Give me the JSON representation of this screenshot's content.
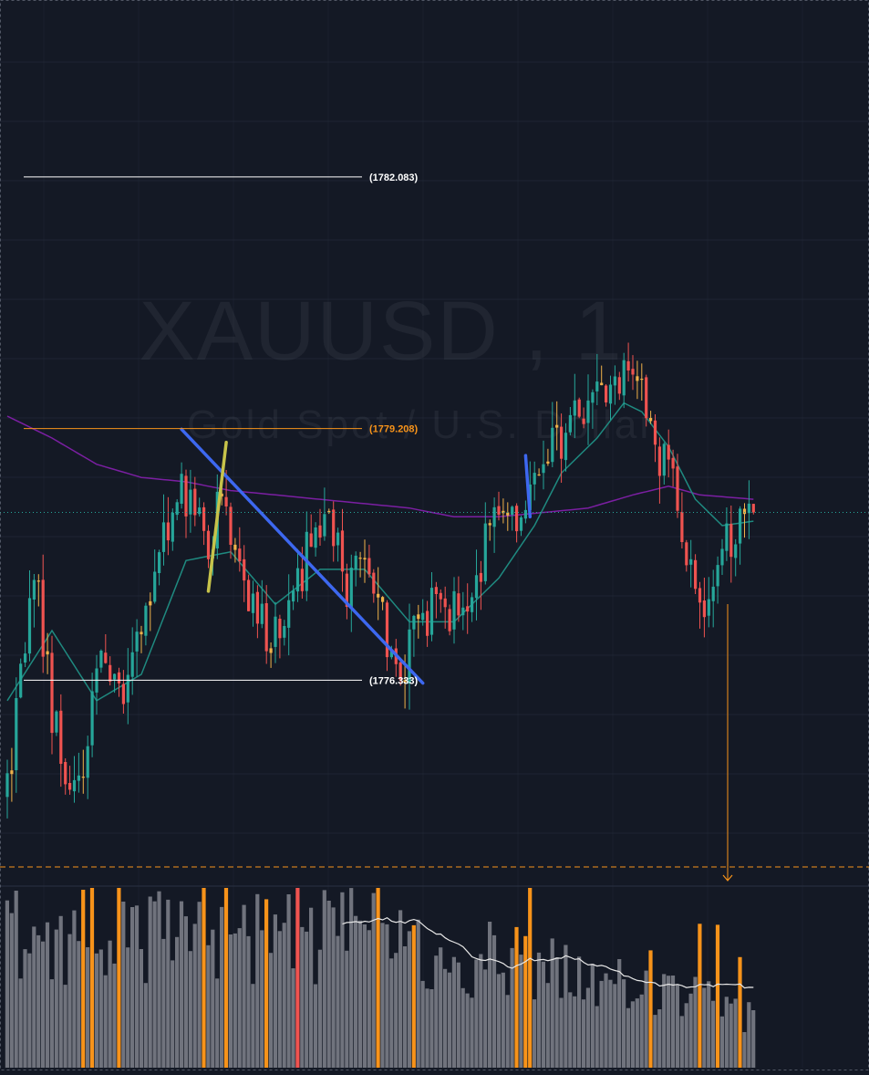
{
  "watermark": {
    "symbol": "XAUUSD , 1",
    "description": "Gold Spot  /  U.S. Dollar"
  },
  "colors": {
    "background": "#141925",
    "grid": "#2a3142",
    "candle_up": "#26a69a",
    "candle_down": "#ef5350",
    "candle_neutral": "#f0b24a",
    "ma_fast": "#1f8a80",
    "ma_slow": "#7b1fa2",
    "trend_blue": "#3d68f0",
    "trend_yellow": "#c7c34a",
    "level_white": "#ffffff",
    "level_orange": "#f7931a",
    "volume_gray": "#70737d",
    "volume_orange": "#f7931a",
    "volume_red": "#ef5350",
    "volume_ma": "#e6e6e6",
    "watermark": "#c9ccd4"
  },
  "chart_data": {
    "type": "candlestick",
    "symbol": "XAUUSD",
    "timeframe": "1",
    "ylim": [
      1774.2,
      1784.0
    ],
    "price_levels": [
      {
        "price": 1782.083,
        "label": "(1782.083)",
        "color": "#ffffff"
      },
      {
        "price": 1779.208,
        "label": "(1779.208)",
        "color": "#f7931a"
      },
      {
        "price": 1776.333,
        "label": "(1776.333)",
        "color": "#ffffff"
      }
    ],
    "current_price": 1778.25,
    "waypoints": [
      [
        0,
        1775.0
      ],
      [
        6,
        1777.6
      ],
      [
        10,
        1776.0
      ],
      [
        14,
        1775.0
      ],
      [
        17,
        1775.4
      ],
      [
        21,
        1776.7
      ],
      [
        26,
        1776.2
      ],
      [
        30,
        1777.0
      ],
      [
        34,
        1777.7
      ],
      [
        38,
        1778.5
      ],
      [
        42,
        1778.2
      ],
      [
        45,
        1777.7
      ],
      [
        48,
        1778.5
      ],
      [
        51,
        1777.8
      ],
      [
        55,
        1777.2
      ],
      [
        58,
        1776.8
      ],
      [
        61,
        1777.0
      ],
      [
        65,
        1777.4
      ],
      [
        68,
        1778.0
      ],
      [
        72,
        1778.1
      ],
      [
        76,
        1777.4
      ],
      [
        80,
        1777.8
      ],
      [
        83,
        1777.2
      ],
      [
        86,
        1776.6
      ],
      [
        89,
        1776.5
      ],
      [
        92,
        1777.0
      ],
      [
        96,
        1777.2
      ],
      [
        100,
        1777.1
      ],
      [
        104,
        1777.4
      ],
      [
        108,
        1778.0
      ],
      [
        112,
        1778.3
      ],
      [
        116,
        1778.2
      ],
      [
        119,
        1778.9
      ],
      [
        123,
        1779.0
      ],
      [
        127,
        1779.3
      ],
      [
        131,
        1779.5
      ],
      [
        135,
        1779.8
      ],
      [
        139,
        1779.9
      ],
      [
        142,
        1779.5
      ],
      [
        146,
        1778.9
      ],
      [
        150,
        1778.4
      ],
      [
        153,
        1777.6
      ],
      [
        156,
        1777.3
      ],
      [
        160,
        1777.8
      ],
      [
        164,
        1778.15
      ],
      [
        167,
        1778.25
      ]
    ],
    "ma_fast": [
      [
        0,
        1776.1
      ],
      [
        10,
        1776.9
      ],
      [
        20,
        1776.1
      ],
      [
        30,
        1776.4
      ],
      [
        40,
        1777.7
      ],
      [
        50,
        1777.8
      ],
      [
        60,
        1777.2
      ],
      [
        70,
        1777.6
      ],
      [
        80,
        1777.6
      ],
      [
        90,
        1777.0
      ],
      [
        100,
        1777.0
      ],
      [
        110,
        1777.5
      ],
      [
        118,
        1778.1
      ],
      [
        124,
        1778.7
      ],
      [
        132,
        1779.1
      ],
      [
        138,
        1779.5
      ],
      [
        142,
        1779.4
      ],
      [
        148,
        1779.0
      ],
      [
        154,
        1778.4
      ],
      [
        160,
        1778.1
      ],
      [
        167,
        1778.15
      ]
    ],
    "ma_slow": [
      [
        0,
        1779.35
      ],
      [
        10,
        1779.1
      ],
      [
        20,
        1778.8
      ],
      [
        30,
        1778.65
      ],
      [
        40,
        1778.6
      ],
      [
        50,
        1778.5
      ],
      [
        60,
        1778.45
      ],
      [
        70,
        1778.4
      ],
      [
        80,
        1778.35
      ],
      [
        90,
        1778.3
      ],
      [
        100,
        1778.2
      ],
      [
        110,
        1778.2
      ],
      [
        120,
        1778.25
      ],
      [
        130,
        1778.3
      ],
      [
        140,
        1778.45
      ],
      [
        148,
        1778.55
      ],
      [
        155,
        1778.45
      ],
      [
        167,
        1778.4
      ]
    ],
    "trendlines": [
      {
        "from": [
          39,
          1779.2
        ],
        "to": [
          93,
          1776.3
        ],
        "color": "#3d68f0"
      },
      {
        "from": [
          45,
          1777.35
        ],
        "to": [
          49,
          1779.05
        ],
        "color": "#c7c34a"
      },
      {
        "from": [
          116,
          1778.9
        ],
        "to": [
          117,
          1778.2
        ],
        "color": "#3d68f0"
      }
    ],
    "volume_spikes_orange": [
      17,
      19,
      25,
      44,
      49,
      58,
      83,
      91,
      114,
      116,
      117,
      144,
      155,
      159,
      164
    ],
    "volume_spikes_red": [
      65
    ]
  }
}
